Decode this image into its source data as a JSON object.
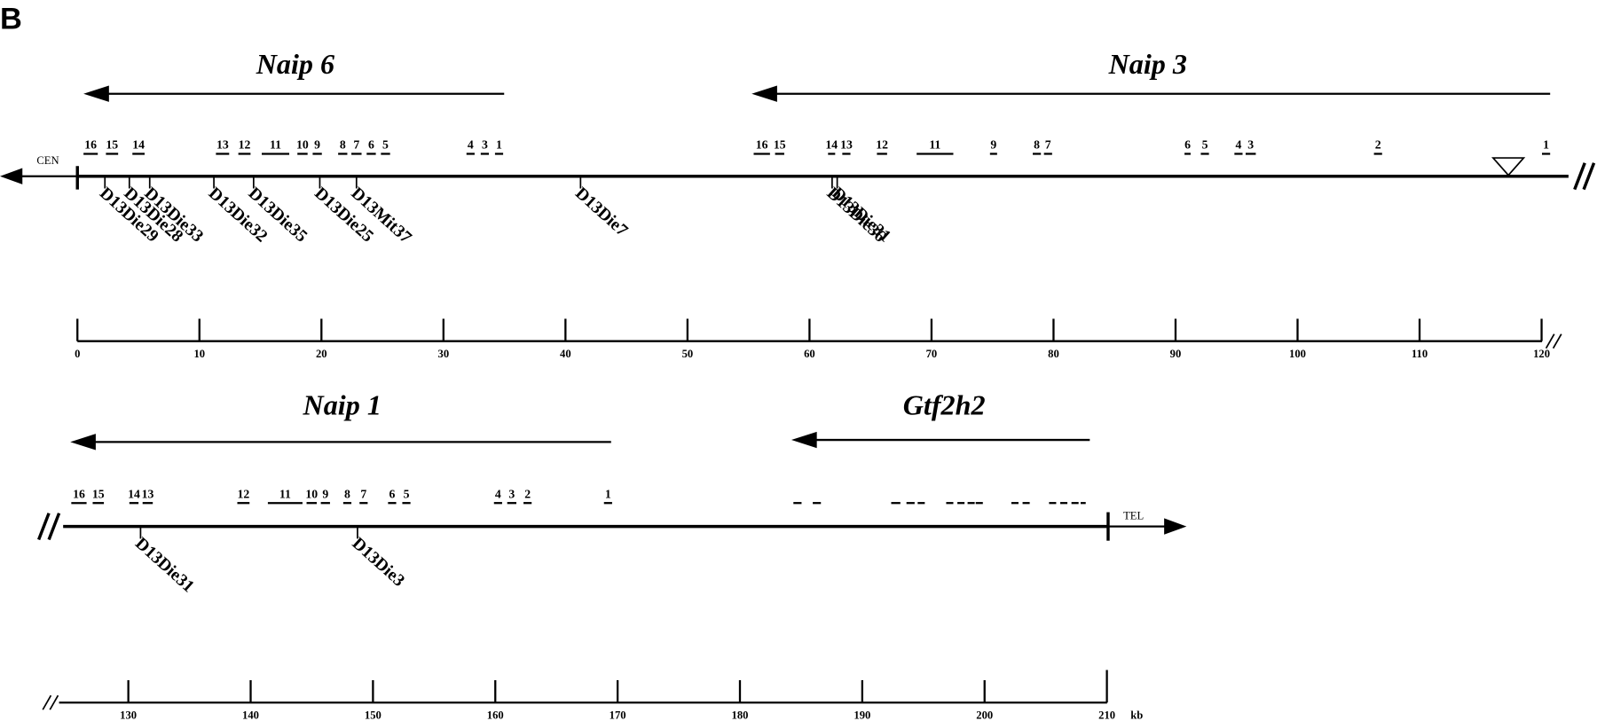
{
  "panel_label": "B",
  "labels": {
    "cen": "CEN",
    "tel": "TEL",
    "unit": "kb"
  },
  "rows": [
    {
      "genes": [
        {
          "name": "Naip 6",
          "exons": [
            "16",
            "15",
            "14",
            "13",
            "12",
            "11",
            "10",
            "9",
            "8",
            "7",
            "6",
            "5",
            "4",
            "3",
            "1"
          ]
        },
        {
          "name": "Naip 3",
          "exons": [
            "16",
            "15",
            "14",
            "13",
            "12",
            "11",
            "9",
            "8",
            "7",
            "6",
            "5",
            "4",
            "3",
            "2",
            "1"
          ]
        }
      ],
      "markers": [
        "D13Die29",
        "D13Die28",
        "D13Die33",
        "D13Die32",
        "D13Die35",
        "D13Die25",
        "D13Mit37",
        "D13Die7",
        "D13Die36",
        "D13Die31"
      ],
      "scale_ticks": [
        0,
        10,
        20,
        30,
        40,
        50,
        60,
        70,
        80,
        90,
        100,
        110,
        120
      ]
    },
    {
      "genes": [
        {
          "name": "Naip 1",
          "exons": [
            "16",
            "15",
            "14",
            "13",
            "12",
            "11",
            "10",
            "9",
            "8",
            "7",
            "6",
            "5",
            "4",
            "3",
            "2",
            "1"
          ]
        },
        {
          "name": "Gtf2h2",
          "exons": []
        }
      ],
      "markers": [
        "D13Die31",
        "D13Die3"
      ],
      "scale_ticks": [
        130,
        140,
        150,
        160,
        170,
        180,
        190,
        200,
        210
      ]
    }
  ]
}
